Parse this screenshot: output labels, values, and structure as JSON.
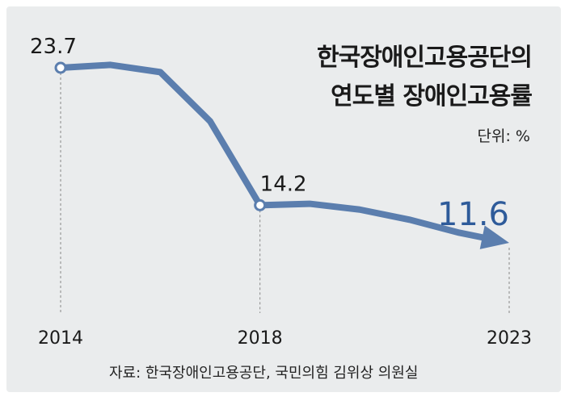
{
  "chart_data": {
    "type": "line",
    "title_lines": [
      "한국장애인고용공단의",
      "연도별 장애인고용률"
    ],
    "unit": "단위: %",
    "source": "자료: 한국장애인고용공단, 국민의힘 김위상 의원실",
    "x_ticks": [
      "2014",
      "2018",
      "2023"
    ],
    "x": [
      2014,
      2015,
      2016,
      2017,
      2018,
      2019,
      2020,
      2021,
      2022,
      2023
    ],
    "values": [
      23.7,
      23.9,
      23.4,
      20.0,
      14.2,
      14.3,
      13.9,
      13.2,
      12.3,
      11.6
    ],
    "labels": [
      {
        "x": 2014,
        "text": "23.7"
      },
      {
        "x": 2018,
        "text": "14.2"
      },
      {
        "x": 2023,
        "text": "11.6"
      }
    ],
    "xlim": [
      2014,
      2023
    ],
    "ylim": [
      11.6,
      23.7
    ],
    "grid": false,
    "legend": "none",
    "colors": {
      "line": "#5b7eae",
      "highlight_label": "#2e5b9a",
      "label": "#1a1a1a",
      "background": "#eaeced"
    }
  }
}
